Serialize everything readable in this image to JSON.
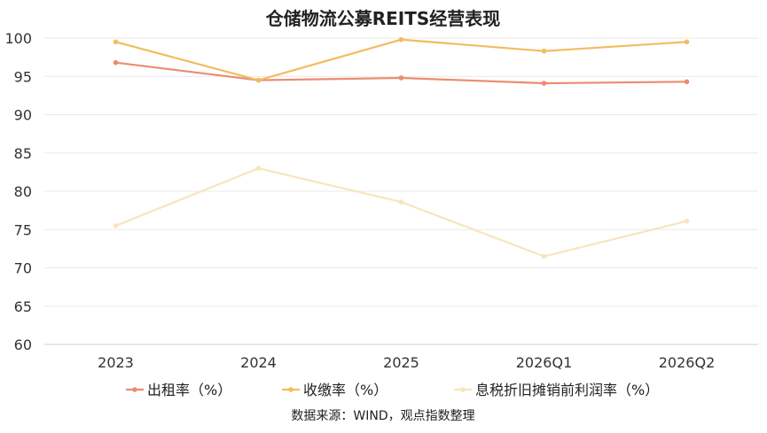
{
  "chart_data": {
    "type": "line",
    "title": "仓储物流公募REITS经营表现",
    "categories": [
      "2023",
      "2024",
      "2025",
      "2026Q1",
      "2026Q2"
    ],
    "ylim": [
      60,
      100
    ],
    "yticks": [
      60,
      65,
      70,
      75,
      80,
      85,
      90,
      95,
      100
    ],
    "grid": true,
    "legend_position": "bottom",
    "series": [
      {
        "name": "出租率（%）",
        "color": "#EB8C6F",
        "values": [
          96.8,
          94.5,
          94.8,
          94.1,
          94.3
        ]
      },
      {
        "name": "收缴率（%）",
        "color": "#F2BC5E",
        "values": [
          99.5,
          94.5,
          99.8,
          98.3,
          99.5
        ]
      },
      {
        "name": "息税折旧摊销前利润率（%）",
        "color": "#F8E5BE",
        "values": [
          75.5,
          83.0,
          78.6,
          71.5,
          76.1
        ]
      }
    ],
    "source": "数据来源：WIND，观点指数整理"
  }
}
